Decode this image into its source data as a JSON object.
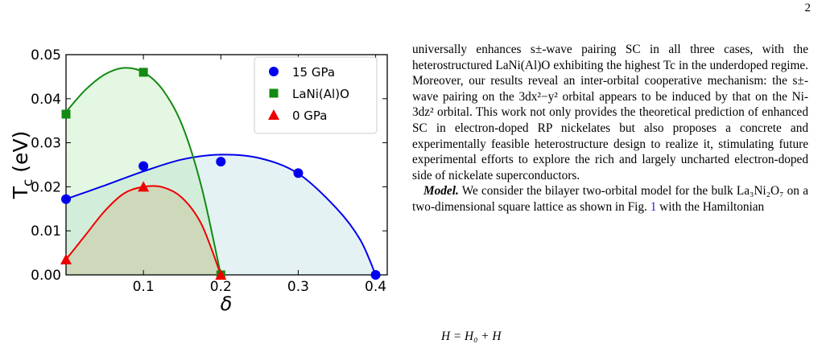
{
  "page_number": "2",
  "chart_data": {
    "type": "line",
    "y_label": [
      "T",
      "c",
      " (eV)"
    ],
    "x_label": "δ",
    "xlim": [
      0,
      0.415
    ],
    "ylim": [
      0,
      0.05
    ],
    "xticks": [
      0.1,
      0.2,
      0.3,
      0.4
    ],
    "yticks": [
      {
        "value": 0,
        "label": "0.00"
      },
      {
        "value": 0.01,
        "label": "0.01"
      },
      {
        "value": 0.02,
        "label": "0.02"
      },
      {
        "value": 0.03,
        "label": "0.03"
      },
      {
        "value": 0.04,
        "label": "0.04"
      },
      {
        "value": 0.05,
        "label": "0.05"
      }
    ],
    "legend": "upper right",
    "series": [
      {
        "name": "15 GPa",
        "color": "#0000ee",
        "marker": "circle",
        "fill": "#a9d3da",
        "x": [
          0,
          0.1,
          0.2,
          0.3,
          0.4
        ],
        "values": [
          0.0172,
          0.0247,
          0.0257,
          0.0231,
          0
        ],
        "fit_x": [
          0,
          0.05,
          0.1,
          0.15,
          0.2,
          0.25,
          0.3,
          0.35,
          0.38,
          0.4
        ],
        "fit_values": [
          0.0172,
          0.0203,
          0.0235,
          0.0262,
          0.0273,
          0.0265,
          0.023,
          0.015,
          0.008,
          0
        ]
      },
      {
        "name": "LaNi(Al)O",
        "color": "#138a13",
        "marker": "square",
        "fill": "#a6e6a0",
        "x": [
          0,
          0.1,
          0.2
        ],
        "values": [
          0.0365,
          0.046,
          0
        ],
        "fit_x": [
          0,
          0.025,
          0.05,
          0.075,
          0.1,
          0.125,
          0.15,
          0.175,
          0.2
        ],
        "fit_values": [
          0.037,
          0.042,
          0.0455,
          0.047,
          0.046,
          0.042,
          0.034,
          0.02,
          0
        ]
      },
      {
        "name": "0 GPa",
        "color": "#ee0000",
        "marker": "triangle",
        "fill": "#c8a878",
        "x": [
          0,
          0.1,
          0.2
        ],
        "values": [
          0.0035,
          0.02,
          0
        ],
        "fit_x": [
          0,
          0.025,
          0.05,
          0.075,
          0.1,
          0.125,
          0.15,
          0.175,
          0.2
        ],
        "fit_values": [
          0.0035,
          0.009,
          0.0145,
          0.0185,
          0.02,
          0.0199,
          0.0175,
          0.0115,
          0
        ]
      }
    ]
  },
  "text": {
    "paragraph_1": "universally enhances s±-wave pairing SC in all three cases, with the heterostructured LaNi(Al)O exhibiting the highest Tc in the underdoped regime. Moreover, our results reveal an inter-orbital cooperative mechanism: the s±-wave pairing on the 3dx²−y² orbital appears to be induced by that on the Ni-3dz² orbital. This work not only provides the theoretical prediction of enhanced SC in electron-doped RP nickelates but also proposes a concrete and experimentally feasible heterostructure design to realize it, stimulating future experimental efforts to explore the rich and largely uncharted electron-doped side of nickelate superconductors.",
    "paragraph_2": {
      "heading": "Model.",
      "before_link": " We consider the bilayer two-orbital model for the bulk La₃Ni₂O₇ on a two-dimensional square lattice as shown in Fig. ",
      "link": "1",
      "after_link": " with the Hamiltonian"
    },
    "equation": "H = H₀ + H"
  }
}
